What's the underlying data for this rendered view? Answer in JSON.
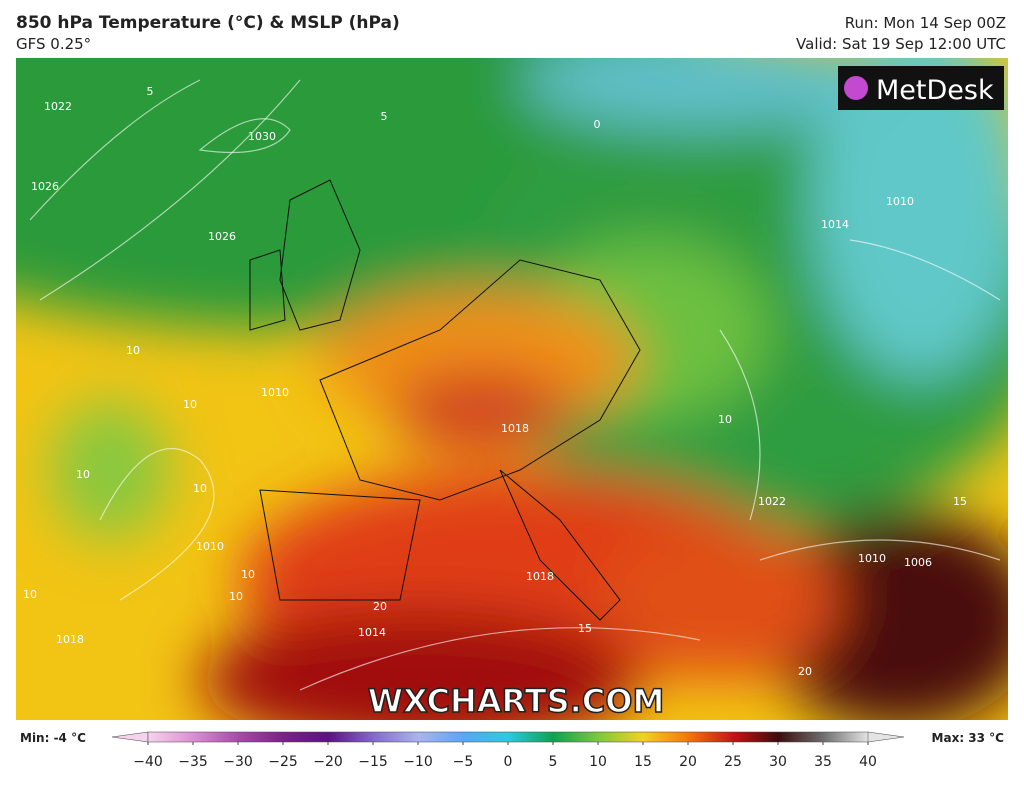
{
  "header": {
    "title": "850 hPa Temperature (°C) & MSLP (hPa)",
    "model": "GFS 0.25°",
    "run": "Run: Mon 14 Sep 00Z",
    "valid": "Valid: Sat 19 Sep 12:00 UTC"
  },
  "logo": "MetDesk",
  "watermark": "WXCHARTS.COM",
  "map": {
    "contour_labels": [
      "1030",
      "1026",
      "1022",
      "1026",
      "1010",
      "1014",
      "10",
      "10",
      "1010",
      "10",
      "10",
      "1010",
      "1018",
      "1014",
      "20",
      "1018",
      "15",
      "1022",
      "1010",
      "1006",
      "15",
      "10",
      "1018",
      "5",
      "5",
      "0",
      "10",
      "10",
      "10",
      "20"
    ]
  },
  "colorbar": {
    "min": "Min: -4 °C",
    "max": "Max: 33 °C",
    "ticks": [
      {
        "value": -40,
        "label": "−40"
      },
      {
        "value": -35,
        "label": "−35"
      },
      {
        "value": -30,
        "label": "−30"
      },
      {
        "value": -25,
        "label": "−25"
      },
      {
        "value": -20,
        "label": "−20"
      },
      {
        "value": -15,
        "label": "−15"
      },
      {
        "value": -10,
        "label": "−10"
      },
      {
        "value": -5,
        "label": "−5"
      },
      0,
      5,
      10,
      15,
      20,
      25,
      30,
      35,
      40
    ],
    "colors": [
      "#f5d3ec",
      "#dc8fd3",
      "#a84aa8",
      "#7b2088",
      "#5c1280",
      "#8468cc",
      "#aab4f0",
      "#5aa6f2",
      "#30c8e0",
      "#10a050",
      "#7cc840",
      "#f4d020",
      "#f07810",
      "#c41414",
      "#3c0c0c",
      "#6e6e6e",
      "#e4e4e4"
    ],
    "xlim": [
      -40,
      40
    ]
  }
}
